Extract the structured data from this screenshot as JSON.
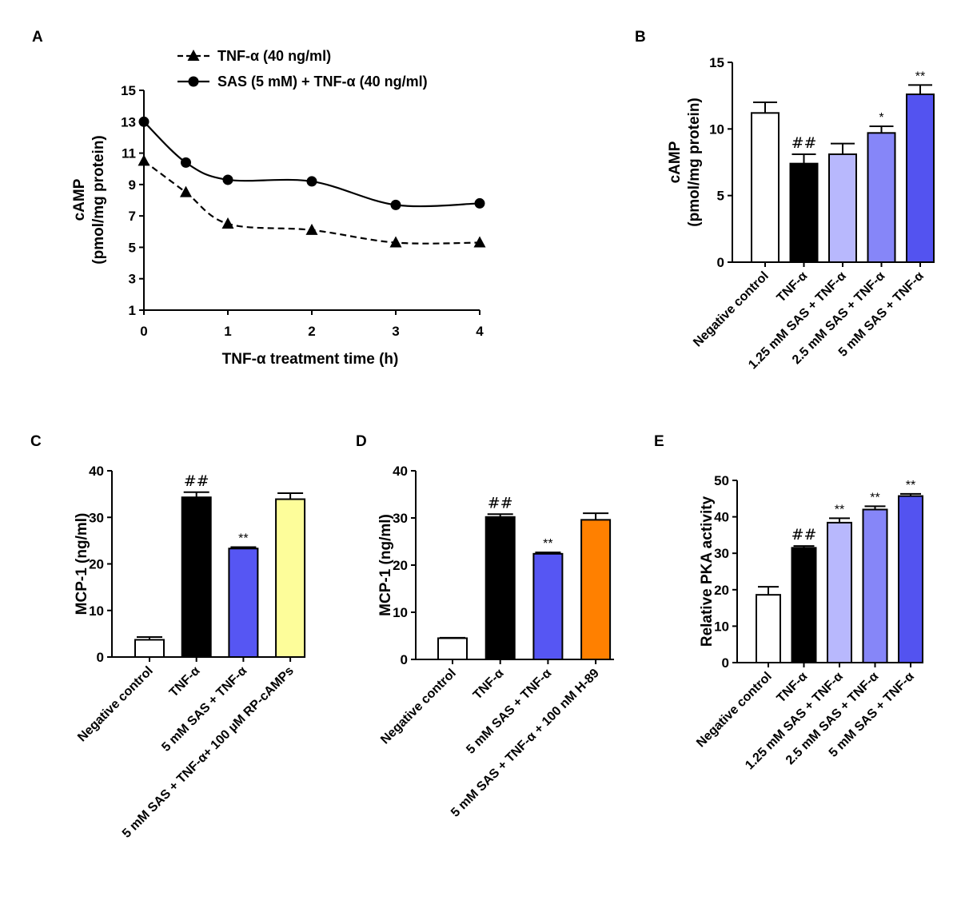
{
  "chart_data": [
    {
      "panel": "A",
      "type": "line",
      "xlabel": "TNF-α treatment time (h)",
      "ylabel": [
        "cAMP",
        "(pmol/mg protein)"
      ],
      "xlim": [
        0,
        4
      ],
      "ylim": [
        1,
        15
      ],
      "xticks": [
        0,
        1,
        2,
        3,
        4
      ],
      "yticks": [
        1,
        3,
        5,
        7,
        9,
        11,
        13,
        15
      ],
      "series": [
        {
          "name": "TNF-α (40 ng/ml)",
          "marker": "triangle",
          "style": "dashed",
          "x": [
            0,
            0.5,
            1,
            2,
            3,
            4
          ],
          "y": [
            10.5,
            8.5,
            6.5,
            6.1,
            5.3,
            5.3
          ]
        },
        {
          "name": "SAS (5 mM) + TNF-α (40 ng/ml)",
          "marker": "circle",
          "style": "solid",
          "x": [
            0,
            0.5,
            1,
            2,
            3,
            4
          ],
          "y": [
            13.0,
            10.4,
            9.3,
            9.2,
            7.7,
            7.8
          ]
        }
      ]
    },
    {
      "panel": "B",
      "type": "bar",
      "ylabel": [
        "cAMP",
        "(pmol/mg protein)"
      ],
      "ylim": [
        0,
        15
      ],
      "yticks": [
        0,
        5,
        10,
        15
      ],
      "categories": [
        "Negative control",
        "TNF-α",
        "1.25 mM SAS + TNF-α",
        "2.5 mM SAS + TNF-α",
        "5 mM SAS + TNF-α"
      ],
      "values": [
        11.2,
        7.4,
        8.1,
        9.7,
        12.6
      ],
      "errors": [
        0.8,
        0.7,
        0.8,
        0.5,
        0.7
      ],
      "colors": [
        "#ffffff",
        "#000000",
        "#b8b8fd",
        "#8686f8",
        "#5353f0"
      ],
      "annotations": [
        "",
        "##",
        "",
        "*",
        "**"
      ]
    },
    {
      "panel": "C",
      "type": "bar",
      "ylabel": [
        "MCP-1 (ng/ml)"
      ],
      "ylim": [
        0,
        40
      ],
      "yticks": [
        0,
        10,
        20,
        30,
        40
      ],
      "categories": [
        "Negative control",
        "TNF-α",
        "5 mM SAS + TNF-α",
        "5 mM SAS + TNF-α+ 100 µM RP-cAMPs"
      ],
      "values": [
        3.7,
        34.3,
        23.3,
        33.9
      ],
      "errors": [
        0.6,
        1.1,
        0.3,
        1.3
      ],
      "colors": [
        "#ffffff",
        "#000000",
        "#5656f3",
        "#fdfd9a"
      ],
      "annotations": [
        "",
        "##",
        "**",
        ""
      ]
    },
    {
      "panel": "D",
      "type": "bar",
      "ylabel": [
        "MCP-1 (ng/ml)"
      ],
      "ylim": [
        0,
        40
      ],
      "yticks": [
        0,
        10,
        20,
        30,
        40
      ],
      "categories": [
        "Negative control",
        "TNF-α",
        "5 mM SAS + TNF-α",
        "5 mM SAS + TNF-α + 100 nM H-89"
      ],
      "values": [
        4.5,
        30.2,
        22.4,
        29.6
      ],
      "errors": [
        0.1,
        0.6,
        0.3,
        1.4
      ],
      "colors": [
        "#ffffff",
        "#000000",
        "#5656f3",
        "#ff8000"
      ],
      "annotations": [
        "",
        "##",
        "**",
        ""
      ]
    },
    {
      "panel": "E",
      "type": "bar",
      "ylabel": [
        "Relative PKA activity"
      ],
      "ylim": [
        0,
        50
      ],
      "yticks": [
        0,
        10,
        20,
        30,
        40,
        50
      ],
      "categories": [
        "Negative control",
        "TNF-α",
        "1.25 mM SAS + TNF-α",
        "2.5 mM SAS + TNF-α",
        "5 mM SAS + TNF-α"
      ],
      "values": [
        18.6,
        31.5,
        38.4,
        42.0,
        45.7
      ],
      "errors": [
        2.2,
        0.5,
        1.2,
        0.9,
        0.6
      ],
      "colors": [
        "#ffffff",
        "#000000",
        "#b8b8fd",
        "#8686f8",
        "#5353f0"
      ],
      "annotations": [
        "",
        "##",
        "**",
        "**",
        "**"
      ]
    }
  ]
}
